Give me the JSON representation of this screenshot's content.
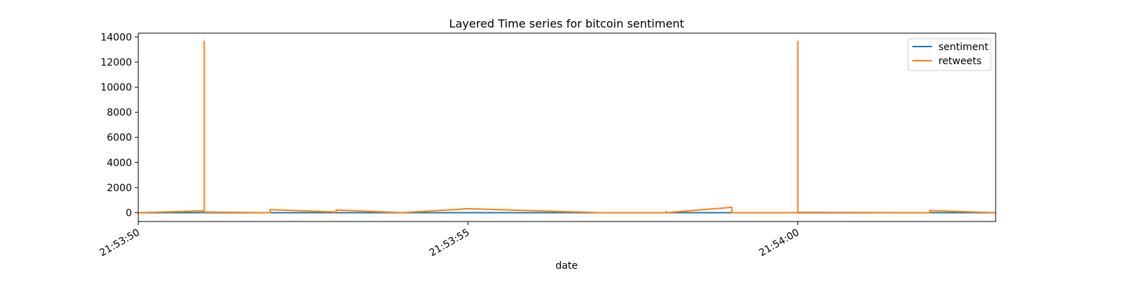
{
  "chart_data": {
    "type": "line",
    "title": "Layered Time series for bitcoin sentiment",
    "xlabel": "date",
    "ylabel": "",
    "x_ticks": [
      "21:53:50",
      "21:53:55",
      "21:54:00"
    ],
    "x_tick_values": [
      "21:53:50",
      "21:53:55",
      "21:54:00"
    ],
    "xlim": [
      "21:53:50",
      "21:54:03"
    ],
    "ylim": [
      -700,
      14300
    ],
    "y_ticks": [
      0,
      2000,
      4000,
      6000,
      8000,
      10000,
      12000,
      14000
    ],
    "legend_position": "top-right",
    "grid": false,
    "series": [
      {
        "name": "sentiment",
        "color": "#1f77b4",
        "points": [
          [
            "21:53:50",
            0
          ],
          [
            "21:53:51",
            0
          ],
          [
            "21:53:52",
            0
          ],
          [
            "21:53:53",
            0
          ],
          [
            "21:53:54",
            0
          ],
          [
            "21:53:55",
            0
          ],
          [
            "21:53:56",
            0
          ],
          [
            "21:53:57",
            0
          ],
          [
            "21:53:58",
            0
          ],
          [
            "21:53:59",
            0
          ],
          [
            "21:54:00",
            0
          ],
          [
            "21:54:01",
            0
          ],
          [
            "21:54:02",
            0
          ],
          [
            "21:54:03",
            0
          ]
        ]
      },
      {
        "name": "retweets",
        "color": "#ff7f0e",
        "points": [
          [
            "21:53:50",
            0
          ],
          [
            "21:53:51",
            150
          ],
          [
            "21:53:51",
            13650
          ],
          [
            "21:53:51",
            50
          ],
          [
            "21:53:52",
            0
          ],
          [
            "21:53:52",
            250
          ],
          [
            "21:53:53",
            50
          ],
          [
            "21:53:53",
            220
          ],
          [
            "21:53:54",
            0
          ],
          [
            "21:53:55",
            320
          ],
          [
            "21:53:57",
            0
          ],
          [
            "21:53:58",
            0
          ],
          [
            "21:53:58",
            100
          ],
          [
            "21:53:58",
            0
          ],
          [
            "21:53:59",
            430
          ],
          [
            "21:53:59",
            0
          ],
          [
            "21:54:00",
            0
          ],
          [
            "21:54:00",
            13650
          ],
          [
            "21:54:00",
            30
          ],
          [
            "21:54:02",
            0
          ],
          [
            "21:54:02",
            180
          ],
          [
            "21:54:03",
            0
          ]
        ]
      }
    ]
  }
}
